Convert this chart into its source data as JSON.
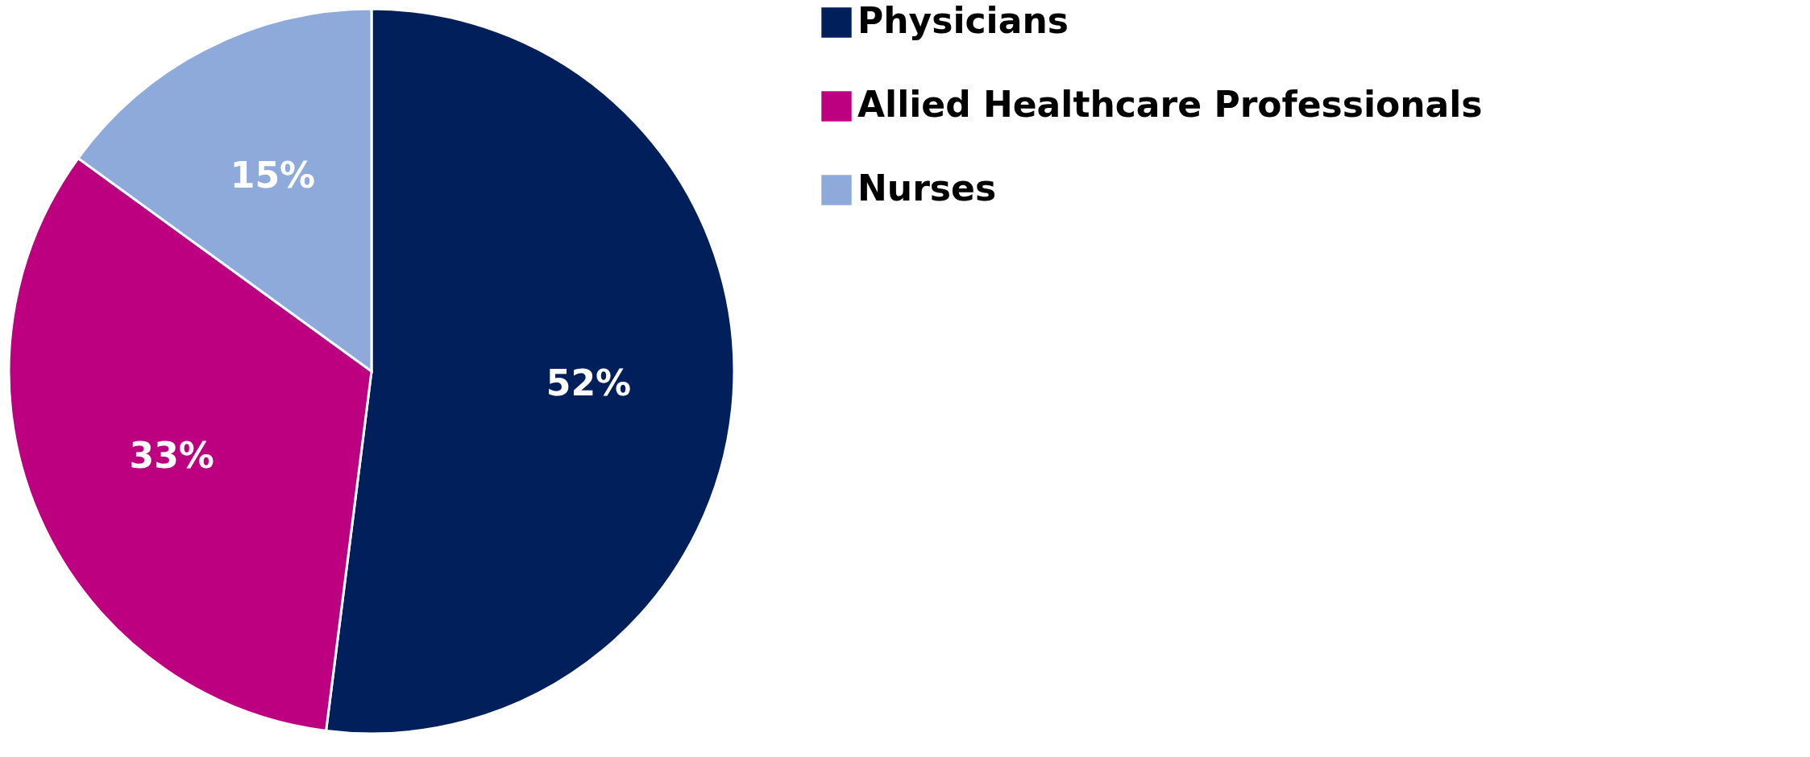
{
  "chart_data": {
    "type": "pie",
    "categories": [
      "Physicians",
      "Allied Healthcare Professionals",
      "Nurses"
    ],
    "values": [
      52,
      33,
      15
    ],
    "value_labels": [
      "52%",
      "33%",
      "15%"
    ],
    "colors": [
      "#001f5b",
      "#bc0080",
      "#8eaadb"
    ],
    "legend": "right"
  }
}
